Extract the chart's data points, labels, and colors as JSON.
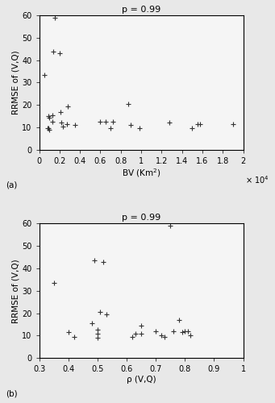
{
  "title": "p = 0.99",
  "plot_a": {
    "x": [
      0.05,
      0.08,
      0.09,
      0.09,
      0.1,
      0.1,
      0.13,
      0.13,
      0.14,
      0.15,
      0.2,
      0.21,
      0.22,
      0.23,
      0.27,
      0.28,
      0.35,
      0.6,
      0.65,
      0.7,
      0.72,
      0.87,
      0.9,
      0.98,
      1.28,
      1.5,
      1.55,
      1.58,
      1.9
    ],
    "y": [
      33.5,
      9.5,
      9.5,
      15.0,
      9.0,
      14.5,
      12.5,
      15.5,
      44.0,
      59.0,
      43.0,
      17.0,
      12.0,
      10.5,
      11.5,
      19.5,
      11.0,
      12.5,
      12.5,
      9.5,
      12.5,
      20.5,
      11.0,
      9.5,
      12.0,
      9.5,
      11.5,
      11.5,
      11.5
    ],
    "xlabel": "BV (Km$^2$)",
    "ylabel": "RRMSE of (V,Q)",
    "xlim": [
      0,
      2
    ],
    "ylim": [
      0,
      60
    ],
    "xticks": [
      0,
      0.2,
      0.4,
      0.6,
      0.8,
      1.0,
      1.2,
      1.4,
      1.6,
      1.8,
      2.0
    ],
    "xticklabels": [
      "0",
      "0.2",
      "0.4",
      "0.6",
      "0.8",
      "1",
      "1.2",
      "1.4",
      "1.6",
      "1.8",
      "2"
    ],
    "yticks": [
      0,
      10,
      20,
      30,
      40,
      50,
      60
    ],
    "yticklabels": [
      "0",
      "10",
      "20",
      "30",
      "40",
      "50",
      "60"
    ],
    "scale_label": "× 10$^4$",
    "panel_label": "(a)"
  },
  "plot_b": {
    "x": [
      0.35,
      0.4,
      0.42,
      0.48,
      0.49,
      0.5,
      0.5,
      0.5,
      0.51,
      0.52,
      0.53,
      0.62,
      0.63,
      0.65,
      0.65,
      0.7,
      0.72,
      0.73,
      0.75,
      0.76,
      0.78,
      0.79,
      0.8,
      0.81,
      0.82
    ],
    "y": [
      33.5,
      11.5,
      9.5,
      15.5,
      43.5,
      12.5,
      9.0,
      11.0,
      20.5,
      43.0,
      19.5,
      9.5,
      11.0,
      14.5,
      11.0,
      12.0,
      10.0,
      9.5,
      59.0,
      12.0,
      17.0,
      11.5,
      12.0,
      12.0,
      10.0
    ],
    "xlabel": "ρ (V,Q)",
    "ylabel": "RRMSE of (V,Q)",
    "xlim": [
      0.3,
      1.0
    ],
    "ylim": [
      0,
      60
    ],
    "xticks": [
      0.3,
      0.4,
      0.5,
      0.6,
      0.7,
      0.8,
      0.9,
      1.0
    ],
    "xticklabels": [
      "0.3",
      "0.4",
      "0.5",
      "0.6",
      "0.7",
      "0.8",
      "0.9",
      "1"
    ],
    "yticks": [
      0,
      10,
      20,
      30,
      40,
      50,
      60
    ],
    "yticklabels": [
      "0",
      "10",
      "20",
      "30",
      "40",
      "50",
      "60"
    ],
    "panel_label": "(b)"
  },
  "marker": "+",
  "marker_size": 4,
  "marker_color": "#333333",
  "marker_linewidth": 0.8,
  "bg_color": "#e8e8e8",
  "plot_bg_color": "#f5f5f5",
  "title_fontsize": 8,
  "label_fontsize": 7.5,
  "tick_fontsize": 7
}
